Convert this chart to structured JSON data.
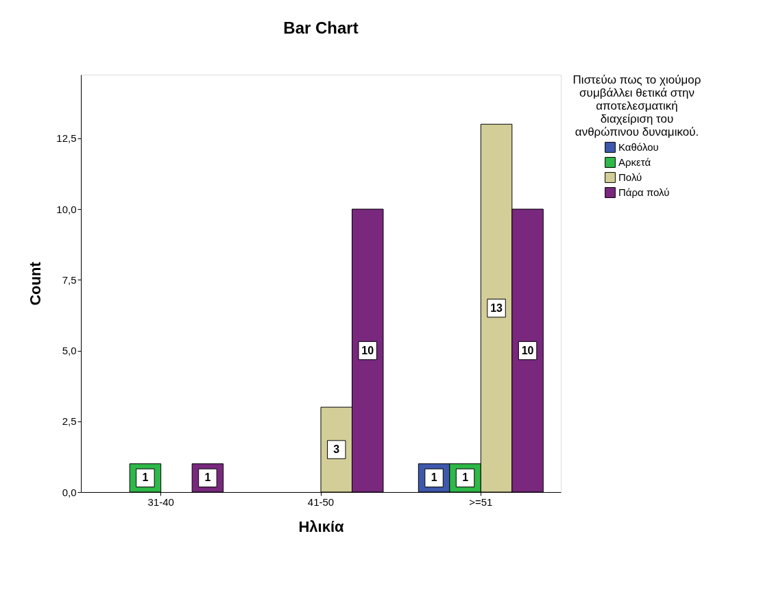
{
  "chart_data": {
    "type": "bar",
    "title": "Bar Chart",
    "xlabel": "Ηλικία",
    "ylabel": "Count",
    "legend_title": "Πιστεύω πως το χιούμορ συμβάλλει θετικά στην αποτελεσματική διαχείριση του ανθρώπινου δυναμικού.",
    "legend": "top right",
    "data_labels": true,
    "grid": false,
    "categories": [
      "31-40",
      "41-50",
      ">=51"
    ],
    "series": [
      {
        "name": "Καθόλου",
        "color": "#3e58ac",
        "values": [
          null,
          null,
          1
        ]
      },
      {
        "name": "Αρκετά",
        "color": "#2eb848",
        "values": [
          1,
          null,
          1
        ]
      },
      {
        "name": "Πολύ",
        "color": "#d3ce97",
        "values": [
          null,
          3,
          13
        ]
      },
      {
        "name": "Πάρα πολύ",
        "color": "#79287e",
        "values": [
          1,
          10,
          10
        ]
      }
    ],
    "ylim": [
      0,
      14.75
    ],
    "yticks": [
      {
        "value": 0,
        "label": "0,0"
      },
      {
        "value": 2.5,
        "label": "2,5"
      },
      {
        "value": 5,
        "label": "5,0"
      },
      {
        "value": 7.5,
        "label": "7,5"
      },
      {
        "value": 10,
        "label": "10,0"
      },
      {
        "value": 12.5,
        "label": "12,5"
      }
    ]
  }
}
